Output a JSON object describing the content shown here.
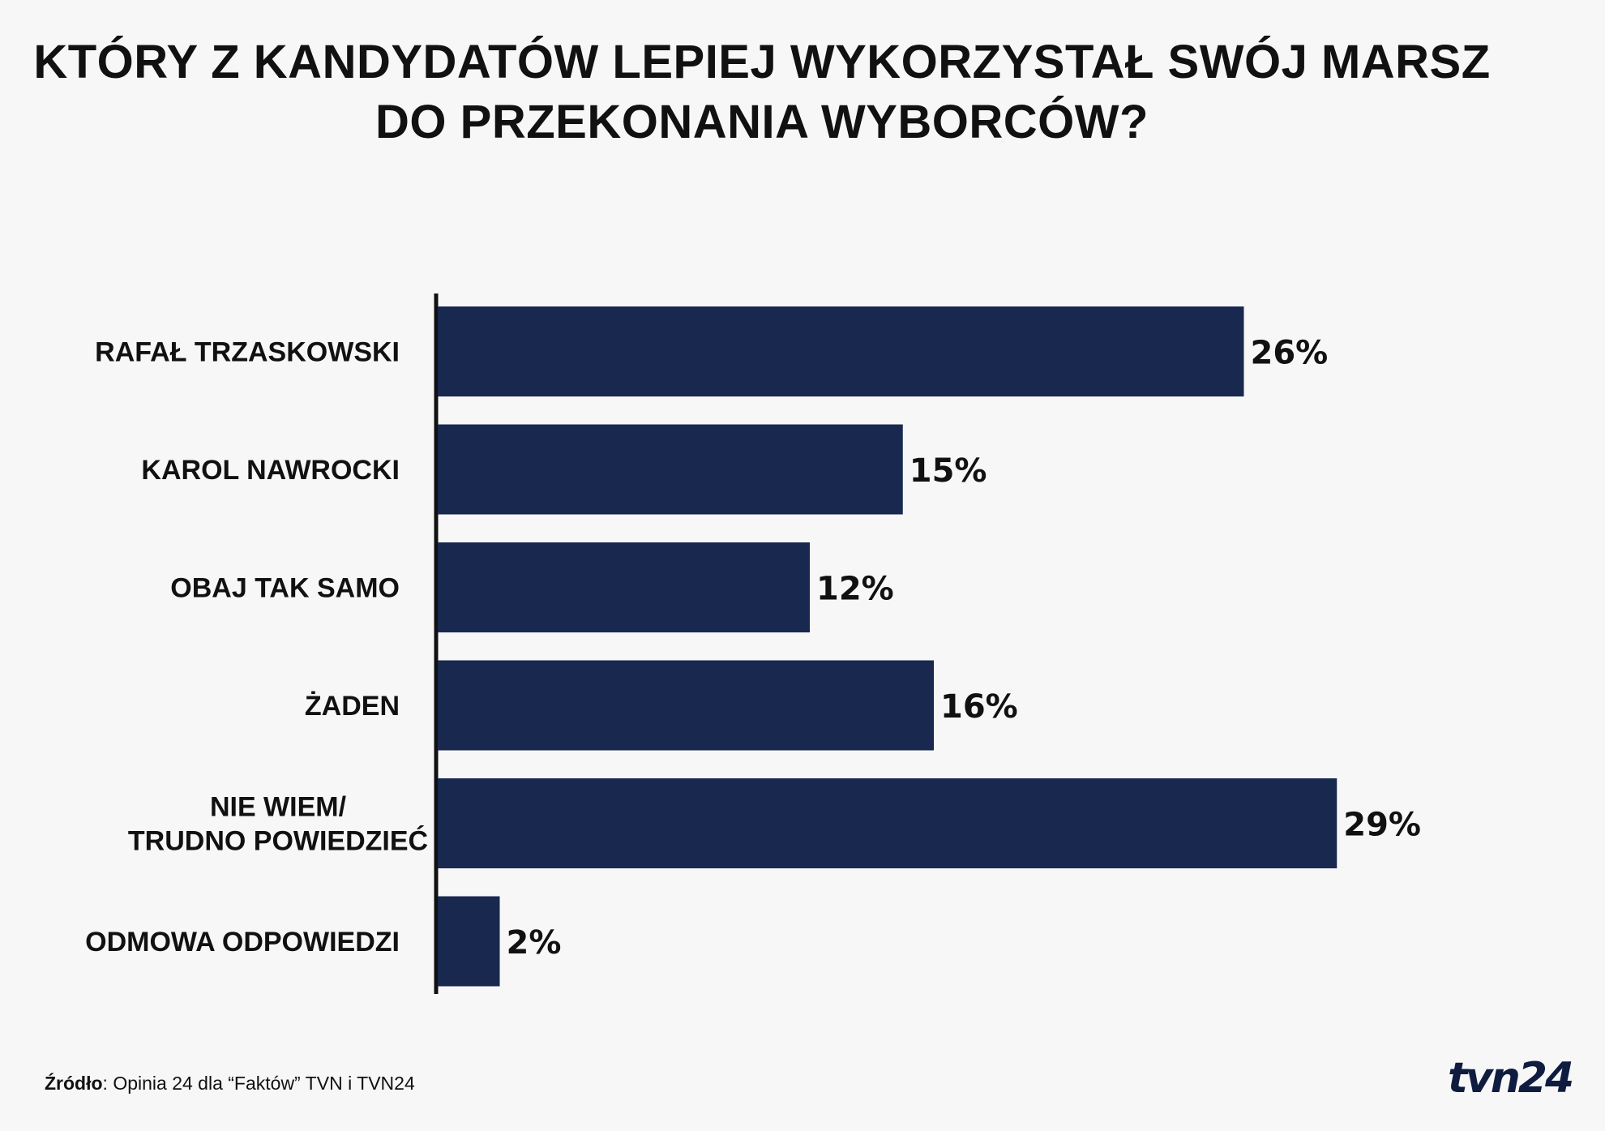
{
  "title": {
    "line1": "KTÓRY Z KANDYDATÓW LEPIEJ WYKORZYSTAŁ SWÓJ MARSZ",
    "line2": "DO PRZEKONANIA WYBORCÓW?"
  },
  "colors": {
    "bar": "#18284f",
    "background": "#f7f7f7",
    "text": "#111111"
  },
  "chart_data": {
    "type": "bar",
    "orientation": "horizontal",
    "categories": [
      [
        "RAFAŁ TRZASKOWSKI"
      ],
      [
        "KAROL NAWROCKI"
      ],
      [
        "OBAJ TAK SAMO"
      ],
      [
        "ŻADEN"
      ],
      [
        "NIE WIEM/",
        "TRUDNO POWIEDZIEĆ"
      ],
      [
        "ODMOWA ODPOWIEDZI"
      ]
    ],
    "values": [
      26,
      15,
      12,
      16,
      29,
      2
    ],
    "value_labels": [
      "26%",
      "15%",
      "12%",
      "16%",
      "29%",
      "2%"
    ],
    "unit": "%",
    "grid": false,
    "legend": "none"
  },
  "source": {
    "label": "Źródło",
    "text": ": Opinia 24 dla “Faktów” TVN i TVN24"
  },
  "logo": {
    "text": "tvn24"
  }
}
